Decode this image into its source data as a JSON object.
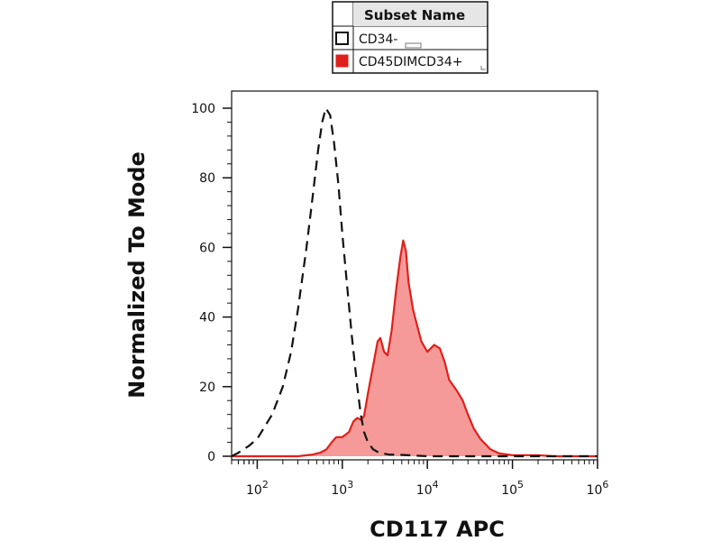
{
  "legend": {
    "header": "Subset Name"
  },
  "chart_data": {
    "type": "area",
    "xlabel": "CD117 APC",
    "ylabel": "Normalized To Mode",
    "x_scale": "log",
    "xlim": [
      50,
      1000000
    ],
    "ylim": [
      0,
      105
    ],
    "x_ticks": [
      {
        "value": 100,
        "base": "10",
        "exp": "2"
      },
      {
        "value": 1000,
        "base": "10",
        "exp": "3"
      },
      {
        "value": 10000,
        "base": "10",
        "exp": "4"
      },
      {
        "value": 100000,
        "base": "10",
        "exp": "5"
      },
      {
        "value": 1000000,
        "base": "10",
        "exp": "6"
      }
    ],
    "y_ticks": [
      "0",
      "20",
      "40",
      "60",
      "80",
      "100"
    ],
    "grid": false,
    "legend_position": "top-center",
    "series": [
      {
        "name": "CD34-",
        "style": "dashed",
        "color": "#111111",
        "fill": "none",
        "points": [
          [
            50,
            0
          ],
          [
            60,
            1
          ],
          [
            80,
            3
          ],
          [
            100,
            5
          ],
          [
            150,
            12
          ],
          [
            200,
            20
          ],
          [
            250,
            30
          ],
          [
            300,
            42
          ],
          [
            380,
            60
          ],
          [
            450,
            75
          ],
          [
            520,
            88
          ],
          [
            580,
            96
          ],
          [
            640,
            100
          ],
          [
            720,
            98
          ],
          [
            800,
            90
          ],
          [
            900,
            78
          ],
          [
            1000,
            64
          ],
          [
            1150,
            48
          ],
          [
            1300,
            34
          ],
          [
            1500,
            20
          ],
          [
            1650,
            12
          ],
          [
            1800,
            7
          ],
          [
            2000,
            4
          ],
          [
            2300,
            2
          ],
          [
            2700,
            1
          ],
          [
            3500,
            0.5
          ],
          [
            5000,
            0.4
          ],
          [
            10000,
            0
          ],
          [
            1000000,
            0
          ]
        ]
      },
      {
        "name": "CD45DIMCD34+",
        "style": "filled",
        "color": "#e0201c",
        "fill": "#f59a98",
        "points": [
          [
            50,
            0
          ],
          [
            300,
            0
          ],
          [
            450,
            0.5
          ],
          [
            550,
            1
          ],
          [
            650,
            2
          ],
          [
            750,
            4
          ],
          [
            850,
            5.5
          ],
          [
            1000,
            5.5
          ],
          [
            1200,
            7
          ],
          [
            1350,
            10
          ],
          [
            1500,
            11
          ],
          [
            1650,
            10.5
          ],
          [
            1800,
            11.5
          ],
          [
            2000,
            18
          ],
          [
            2300,
            26
          ],
          [
            2600,
            33
          ],
          [
            2800,
            34
          ],
          [
            3100,
            30
          ],
          [
            3400,
            29
          ],
          [
            3800,
            36
          ],
          [
            4300,
            48
          ],
          [
            4800,
            57
          ],
          [
            5200,
            62
          ],
          [
            5600,
            59
          ],
          [
            6000,
            50
          ],
          [
            6800,
            42
          ],
          [
            7500,
            38
          ],
          [
            8500,
            33
          ],
          [
            10000,
            30
          ],
          [
            12000,
            32
          ],
          [
            14000,
            31
          ],
          [
            16000,
            27
          ],
          [
            18000,
            22
          ],
          [
            22000,
            19
          ],
          [
            26000,
            16
          ],
          [
            30000,
            12
          ],
          [
            35000,
            8
          ],
          [
            42000,
            5
          ],
          [
            55000,
            2
          ],
          [
            70000,
            0.8
          ],
          [
            100000,
            0.3
          ],
          [
            200000,
            0.3
          ],
          [
            300000,
            0
          ],
          [
            1000000,
            0
          ]
        ]
      }
    ]
  }
}
